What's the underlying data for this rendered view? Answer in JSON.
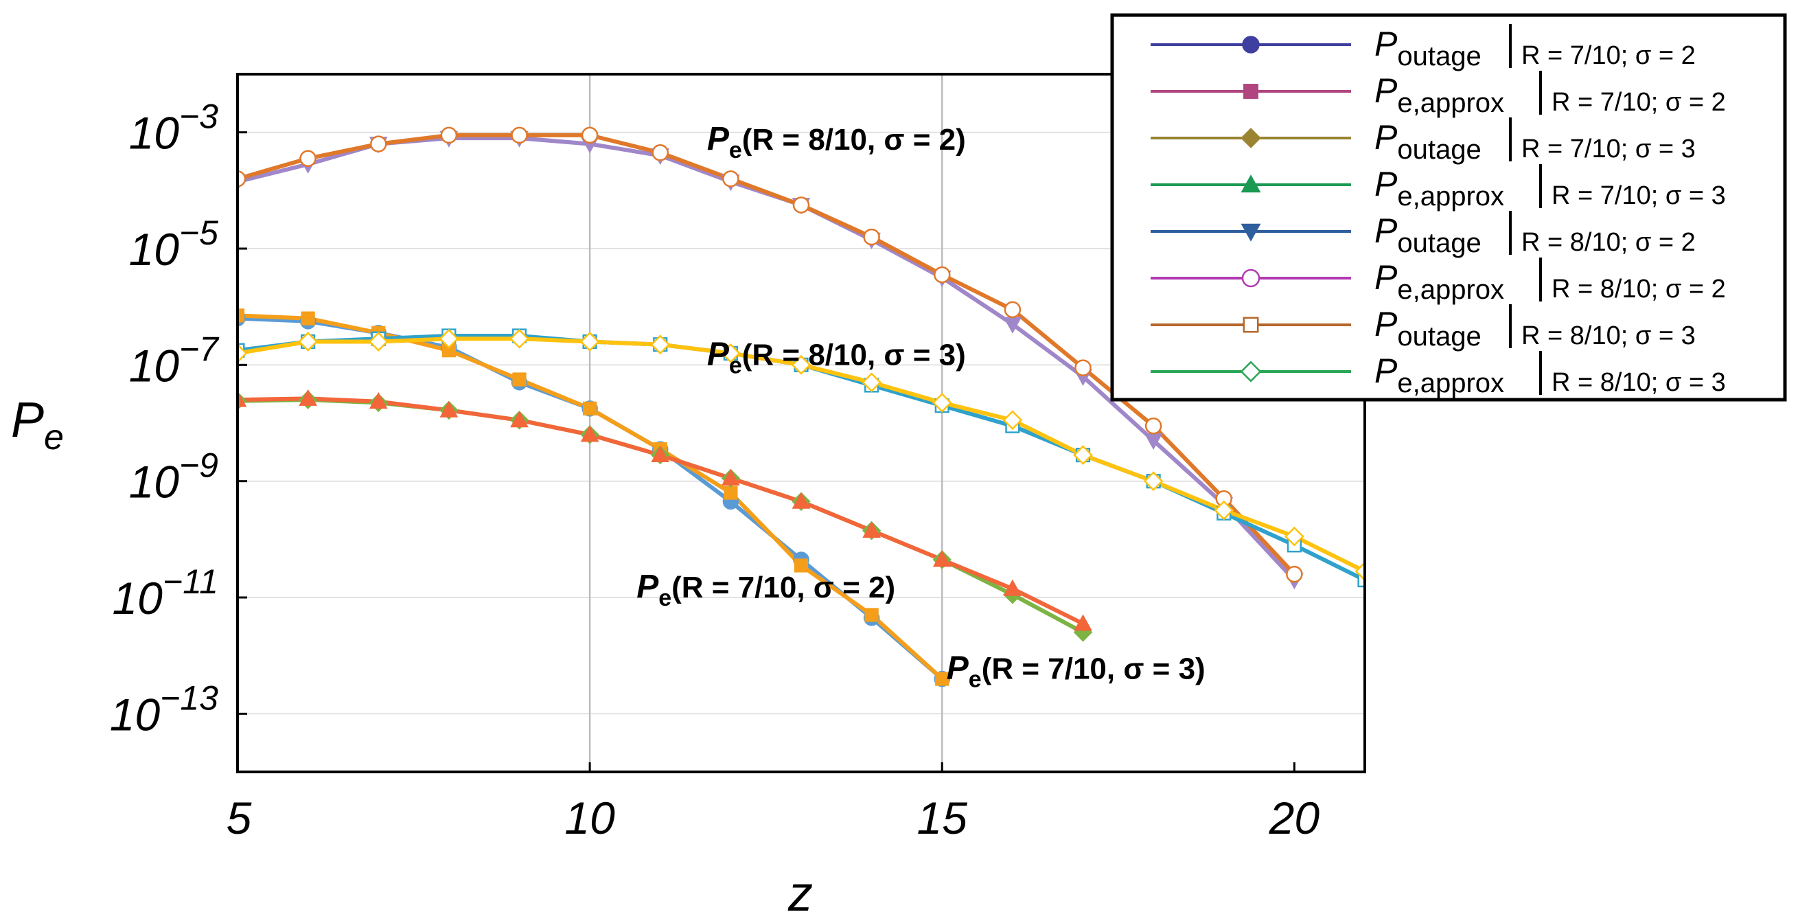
{
  "chart_data": {
    "type": "line",
    "title": "",
    "xlabel": "z",
    "ylabel": "P",
    "ylabel_sub": "e",
    "y_scale": "log10",
    "xlim": [
      5,
      21
    ],
    "ylim_log10": [
      -14,
      -2
    ],
    "x_ticks": [
      5,
      10,
      15,
      20
    ],
    "x_tick_labels": [
      "5",
      "10",
      "15",
      "20"
    ],
    "y_ticks_log10": [
      -3,
      -5,
      -7,
      -9,
      -11,
      -13
    ],
    "y_tick_base": "10",
    "y_tick_exponents": [
      "−3",
      "−5",
      "−7",
      "−9",
      "−11",
      "−13"
    ],
    "x_gridlines": [
      10,
      15
    ],
    "y_gridlines_log10": [
      -3,
      -5,
      -7,
      -9,
      -11,
      -13
    ],
    "annotations": [
      {
        "id": "ann-r8-s2",
        "main": "P",
        "sub": "e",
        "rest": "(R = 8/10, σ = 2)",
        "at_data": [
          13.5,
          -3.3
        ]
      },
      {
        "id": "ann-r8-s3",
        "main": "P",
        "sub": "e",
        "rest": "(R = 8/10, σ = 3)",
        "at_data": [
          13.5,
          -7.0
        ]
      },
      {
        "id": "ann-r7-s2",
        "main": "P",
        "sub": "e",
        "rest": "(R = 7/10, σ = 2)",
        "at_data": [
          12.5,
          -11.0
        ]
      },
      {
        "id": "ann-r7-s3",
        "main": "P",
        "sub": "e",
        "rest": "(R = 7/10, σ = 3)",
        "at_data": [
          16.9,
          -12.4
        ]
      }
    ],
    "series": [
      {
        "name": "P_outage | R = 7/10; σ = 2",
        "legend_main": "P",
        "legend_sub": "outage",
        "legend_cond": "R = 7/10; σ = 2",
        "legend_color": "#3f3f9f",
        "legend_marker": "circle",
        "line_color": "#5b9bd5",
        "marker": "circle",
        "marker_fill": "#5b9bd5",
        "x": [
          5,
          6,
          7,
          8,
          9,
          10,
          11,
          12,
          13,
          14,
          15
        ],
        "y_log10": [
          -6.2,
          -6.25,
          -6.45,
          -6.7,
          -7.3,
          -7.75,
          -8.45,
          -9.35,
          -10.35,
          -11.35,
          -12.4
        ]
      },
      {
        "name": "P_e,approx | R = 7/10; σ = 2",
        "legend_main": "P",
        "legend_sub": "e,approx",
        "legend_cond": "R = 7/10; σ = 2",
        "legend_color": "#b1457f",
        "legend_marker": "square",
        "line_color": "#f59e1a",
        "marker": "square",
        "marker_fill": "#f59e1a",
        "x": [
          5,
          6,
          7,
          8,
          9,
          10,
          11,
          12,
          13,
          14,
          15
        ],
        "y_log10": [
          -6.15,
          -6.2,
          -6.45,
          -6.75,
          -7.25,
          -7.75,
          -8.45,
          -9.2,
          -10.45,
          -11.3,
          -12.4
        ]
      },
      {
        "name": "P_outage | R = 7/10; σ = 3",
        "legend_main": "P",
        "legend_sub": "outage",
        "legend_cond": "R = 7/10; σ = 3",
        "legend_color": "#9a8432",
        "legend_marker": "diamond",
        "line_color": "#7cb342",
        "marker": "diamond",
        "marker_fill": "#7cb342",
        "x": [
          5,
          6,
          7,
          8,
          9,
          10,
          11,
          12,
          13,
          14,
          15,
          16,
          17
        ],
        "y_log10": [
          -7.62,
          -7.6,
          -7.65,
          -7.78,
          -7.95,
          -8.2,
          -8.55,
          -8.95,
          -9.35,
          -9.85,
          -10.35,
          -10.95,
          -11.6
        ]
      },
      {
        "name": "P_e,approx | R = 7/10; σ = 3",
        "legend_main": "P",
        "legend_sub": "e,approx",
        "legend_cond": "R = 7/10; σ = 3",
        "legend_color": "#1a9a52",
        "legend_marker": "triangle-up",
        "line_color": "#f2663a",
        "marker": "triangle-up",
        "marker_fill": "#f2663a",
        "x": [
          5,
          6,
          7,
          8,
          9,
          10,
          11,
          12,
          13,
          14,
          15,
          16,
          17
        ],
        "y_log10": [
          -7.6,
          -7.58,
          -7.63,
          -7.78,
          -7.95,
          -8.2,
          -8.55,
          -8.95,
          -9.35,
          -9.85,
          -10.35,
          -10.85,
          -11.45
        ]
      },
      {
        "name": "P_outage | R = 8/10; σ = 2",
        "legend_main": "P",
        "legend_sub": "outage",
        "legend_cond": "R = 8/10; σ = 2",
        "legend_color": "#2e5e9e",
        "legend_marker": "triangle-down",
        "line_color": "#9f87c9",
        "marker": "triangle-down",
        "marker_fill": "#9f87c9",
        "x": [
          5,
          6,
          7,
          8,
          9,
          10,
          11,
          12,
          13,
          14,
          15,
          16,
          17,
          18,
          19,
          20
        ],
        "y_log10": [
          -3.85,
          -3.55,
          -3.2,
          -3.1,
          -3.1,
          -3.2,
          -3.4,
          -3.85,
          -4.25,
          -4.85,
          -5.5,
          -6.3,
          -7.2,
          -8.3,
          -9.4,
          -10.7
        ]
      },
      {
        "name": "P_e,approx | R = 8/10; σ = 2",
        "legend_main": "P",
        "legend_sub": "e,approx",
        "legend_cond": "R = 8/10; σ = 2",
        "legend_color": "#b13ab1",
        "legend_marker": "circle-open",
        "line_color": "#e0782a",
        "marker": "circle-open",
        "marker_fill": "none",
        "x": [
          5,
          6,
          7,
          8,
          9,
          10,
          11,
          12,
          13,
          14,
          15,
          16,
          17,
          18,
          19,
          20
        ],
        "y_log10": [
          -3.8,
          -3.45,
          -3.2,
          -3.05,
          -3.05,
          -3.05,
          -3.35,
          -3.8,
          -4.25,
          -4.8,
          -5.45,
          -6.05,
          -7.05,
          -8.05,
          -9.3,
          -10.6
        ]
      },
      {
        "name": "P_outage | R = 8/10; σ = 3",
        "legend_main": "P",
        "legend_sub": "outage",
        "legend_cond": "R = 8/10; σ = 3",
        "legend_color": "#b5672c",
        "legend_marker": "square-open",
        "line_color": "#2fa2cc",
        "marker": "square-open",
        "marker_fill": "none",
        "x": [
          5,
          6,
          7,
          8,
          9,
          10,
          11,
          12,
          13,
          14,
          15,
          16,
          17,
          18,
          19,
          20,
          21
        ],
        "y_log10": [
          -6.75,
          -6.6,
          -6.55,
          -6.5,
          -6.5,
          -6.6,
          -6.65,
          -6.8,
          -7.0,
          -7.35,
          -7.7,
          -8.05,
          -8.55,
          -9.0,
          -9.55,
          -10.1,
          -10.7
        ]
      },
      {
        "name": "P_e,approx | R = 8/10; σ = 3",
        "legend_main": "P",
        "legend_sub": "e,approx",
        "legend_cond": "R = 8/10; σ = 3",
        "legend_color": "#2aa657",
        "legend_marker": "diamond-open",
        "line_color": "#ffc20e",
        "marker": "diamond-open",
        "marker_fill": "none",
        "x": [
          5,
          6,
          7,
          8,
          9,
          10,
          11,
          12,
          13,
          14,
          15,
          16,
          17,
          18,
          19,
          20,
          21
        ],
        "y_log10": [
          -6.8,
          -6.6,
          -6.6,
          -6.55,
          -6.55,
          -6.6,
          -6.65,
          -6.8,
          -7.0,
          -7.3,
          -7.65,
          -7.95,
          -8.55,
          -9.0,
          -9.5,
          -9.95,
          -10.55
        ]
      }
    ],
    "legend_placement": "top-right"
  }
}
